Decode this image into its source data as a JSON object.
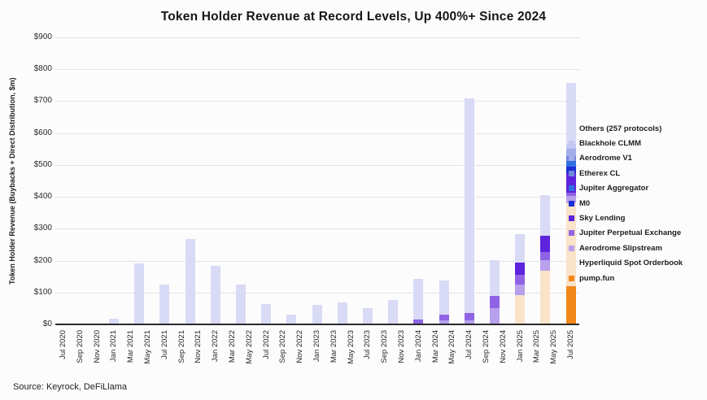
{
  "source": "Source: Keyrock, DeFiLlama",
  "chart_data": {
    "type": "bar",
    "stacked": true,
    "title": "Token Holder Revenue at Record Levels, Up 400%+ Since 2024",
    "ylabel": "Token Holder Revenue (Buybacks + Direct Distribution, $m)",
    "xlabel": "",
    "ylim": [
      0,
      900
    ],
    "ytick_step": 100,
    "ytick_labels": [
      "$0",
      "$100",
      "$200",
      "$300",
      "$400",
      "$500",
      "$600",
      "$700",
      "$800",
      "$900"
    ],
    "grid": "horizontal",
    "legend_position": "right",
    "x_tick_labels": [
      "Jul 2020",
      "Sep 2020",
      "Nov 2020",
      "Jan 2021",
      "Mar 2021",
      "May 2021",
      "Jul 2021",
      "Sep 2021",
      "Nov 2021",
      "Jan 2022",
      "Mar 2022",
      "May 2022",
      "Jul 2022",
      "Sep 2022",
      "Nov 2022",
      "Jan 2023",
      "Mar 2023",
      "May 2023",
      "Jul 2023",
      "Sep 2023",
      "Nov 2023",
      "Jan 2024",
      "Mar 2024",
      "May 2024",
      "Jul 2024",
      "Sep 2024",
      "Nov 2024",
      "Jan 2025",
      "Mar 2025",
      "May 2025",
      "Jul 2025"
    ],
    "series": [
      {
        "name": "Others (257 protocols)",
        "color": "#d9daf6"
      },
      {
        "name": "Blackhole CLMM",
        "color": "#c6c7f3"
      },
      {
        "name": "Aerodrome V1",
        "color": "#a2aeea"
      },
      {
        "name": "Etherex CL",
        "color": "#7288da"
      },
      {
        "name": "Jupiter Aggregator",
        "color": "#3170e2"
      },
      {
        "name": "M0",
        "color": "#1d2ed6"
      },
      {
        "name": "Sky Lending",
        "color": "#5d23dd"
      },
      {
        "name": "Jupiter Perpetual Exchange",
        "color": "#8f63e5"
      },
      {
        "name": "Aerodrome Slipstream",
        "color": "#b8a0ed"
      },
      {
        "name": "Hyperliquid Spot Orderbook",
        "color": "#fae3c9"
      },
      {
        "name": "pump.fun",
        "color": "#f28718"
      }
    ],
    "bars": [
      {
        "label": "Jan 2021",
        "month_offset": 6,
        "segments": {
          "Others (257 protocols)": 18
        }
      },
      {
        "label": "Apr 2021",
        "month_offset": 9,
        "segments": {
          "Others (257 protocols)": 190
        }
      },
      {
        "label": "Jul 2021",
        "month_offset": 12,
        "segments": {
          "Others (257 protocols)": 125
        }
      },
      {
        "label": "Oct 2021",
        "month_offset": 15,
        "segments": {
          "Others (257 protocols)": 268
        }
      },
      {
        "label": "Jan 2022",
        "month_offset": 18,
        "segments": {
          "Others (257 protocols)": 183
        }
      },
      {
        "label": "Apr 2022",
        "month_offset": 21,
        "segments": {
          "Others (257 protocols)": 125
        }
      },
      {
        "label": "Jul 2022",
        "month_offset": 24,
        "segments": {
          "Others (257 protocols)": 65
        }
      },
      {
        "label": "Oct 2022",
        "month_offset": 27,
        "segments": {
          "Others (257 protocols)": 31
        }
      },
      {
        "label": "Jan 2023",
        "month_offset": 30,
        "segments": {
          "Others (257 protocols)": 61
        }
      },
      {
        "label": "Apr 2023",
        "month_offset": 33,
        "segments": {
          "Others (257 protocols)": 68
        }
      },
      {
        "label": "Jul 2023",
        "month_offset": 36,
        "segments": {
          "Others (257 protocols)": 51
        }
      },
      {
        "label": "Oct 2023",
        "month_offset": 39,
        "segments": {
          "Others (257 protocols)": 77
        }
      },
      {
        "label": "Jan 2024",
        "month_offset": 42,
        "segments": {
          "Jupiter Perpetual Exchange": 15,
          "Others (257 protocols)": 127
        }
      },
      {
        "label": "Apr 2024",
        "month_offset": 45,
        "segments": {
          "Aerodrome Slipstream": 12,
          "Jupiter Perpetual Exchange": 19,
          "Others (257 protocols)": 107
        }
      },
      {
        "label": "Jul 2024",
        "month_offset": 48,
        "segments": {
          "Aerodrome Slipstream": 14,
          "Jupiter Perpetual Exchange": 22,
          "Others (257 protocols)": 674
        }
      },
      {
        "label": "Oct 2024",
        "month_offset": 51,
        "segments": {
          "Aerodrome Slipstream": 50,
          "Jupiter Perpetual Exchange": 40,
          "Others (257 protocols)": 111
        }
      },
      {
        "label": "Jan 2025",
        "month_offset": 54,
        "segments": {
          "Hyperliquid Spot Orderbook": 91,
          "Aerodrome Slipstream": 34,
          "Jupiter Perpetual Exchange": 30,
          "Sky Lending": 38,
          "Others (257 protocols)": 89
        }
      },
      {
        "label": "Apr 2025",
        "month_offset": 57,
        "segments": {
          "Hyperliquid Spot Orderbook": 167,
          "Aerodrome Slipstream": 34,
          "Jupiter Perpetual Exchange": 26,
          "Sky Lending": 51,
          "Others (257 protocols)": 128
        }
      },
      {
        "label": "Jul 2025",
        "month_offset": 60,
        "segments": {
          "pump.fun": 121,
          "Hyperliquid Spot Orderbook": 259,
          "Aerodrome Slipstream": 24,
          "Jupiter Perpetual Exchange": 10,
          "Sky Lending": 59,
          "M0": 22,
          "Jupiter Aggregator": 17,
          "Etherex CL": 17,
          "Aerodrome V1": 21,
          "Blackhole CLMM": 17,
          "Others (257 protocols)": 191
        }
      }
    ]
  }
}
